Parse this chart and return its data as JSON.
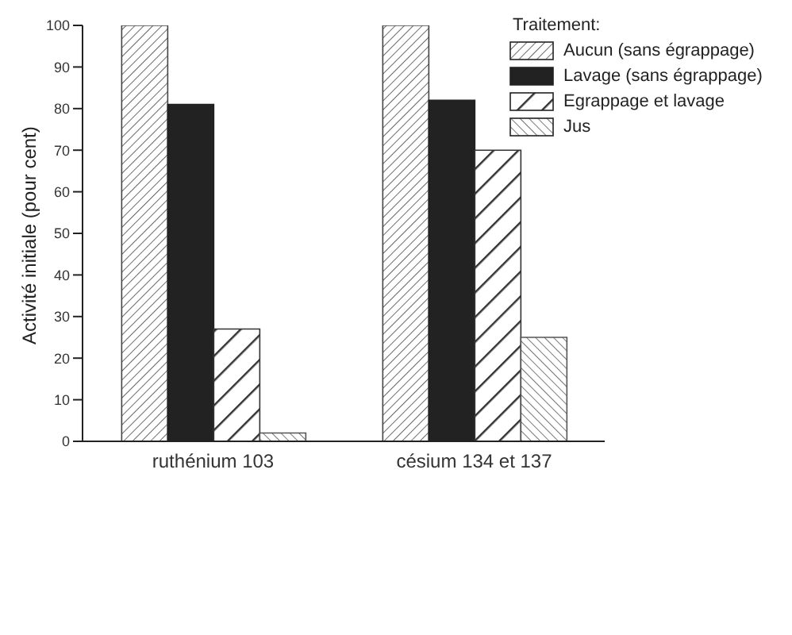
{
  "chart_data": {
    "type": "bar",
    "ylabel": "Activité initiale (pour cent)",
    "legend_title": "Traitement:",
    "categories": [
      "ruthénium 103",
      "césium 134 et 137"
    ],
    "series": [
      {
        "name": "Aucun (sans égrappage)",
        "color": "#444444",
        "values": [
          100,
          100
        ]
      },
      {
        "name": "Lavage (sans égrappage)",
        "color": "#222222",
        "values": [
          81,
          82
        ]
      },
      {
        "name": "Egrappage et lavage",
        "color": "#333333",
        "values": [
          27,
          70
        ]
      },
      {
        "name": "Jus",
        "color": "#555555",
        "values": [
          2,
          25
        ]
      }
    ],
    "ylim": [
      0,
      100
    ],
    "yticks": [
      0,
      10,
      20,
      30,
      40,
      50,
      60,
      70,
      80,
      90,
      100
    ],
    "grid": false,
    "legend": "top right"
  }
}
